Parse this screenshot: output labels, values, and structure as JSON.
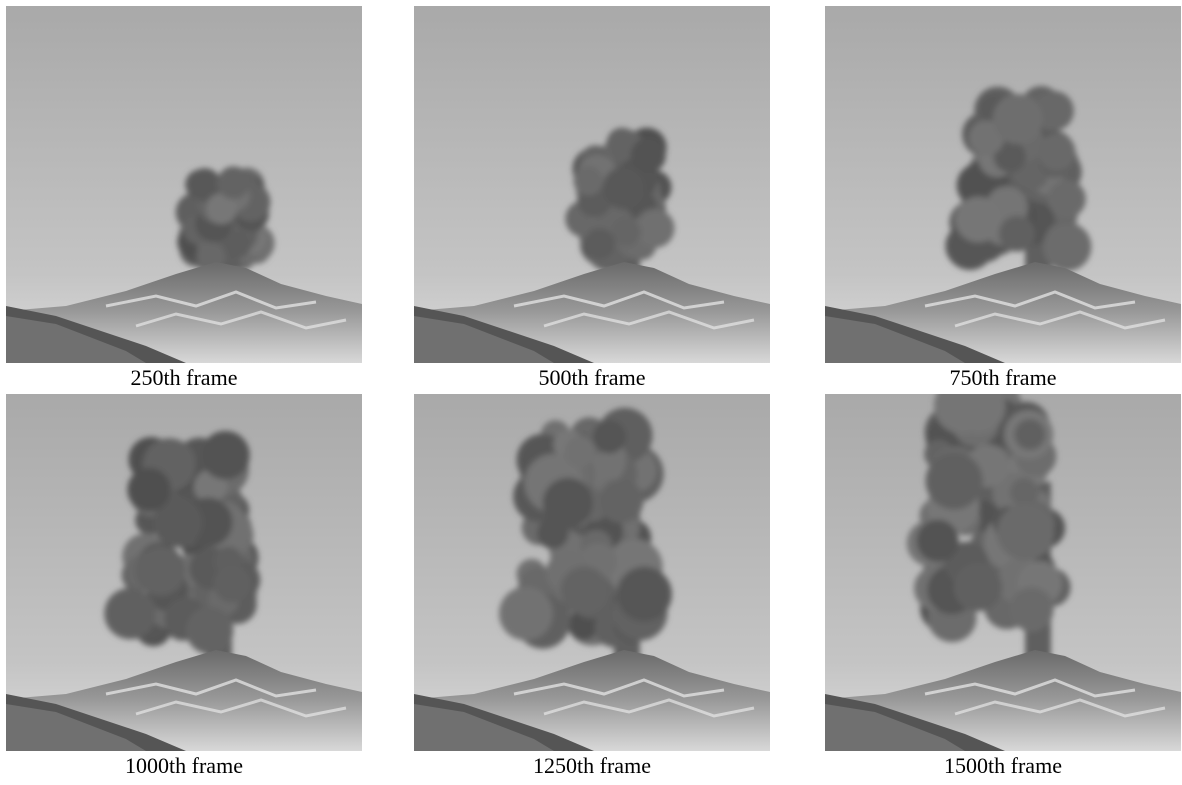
{
  "frames": [
    {
      "caption": "250th frame",
      "plume_scale": 0.42
    },
    {
      "caption": "500th frame",
      "plume_scale": 0.62
    },
    {
      "caption": "750th frame",
      "plume_scale": 0.8
    },
    {
      "caption": "1000th frame",
      "plume_scale": 1.0
    },
    {
      "caption": "1250th frame",
      "plume_scale": 1.15
    },
    {
      "caption": "1500th frame",
      "plume_scale": 1.3
    }
  ]
}
